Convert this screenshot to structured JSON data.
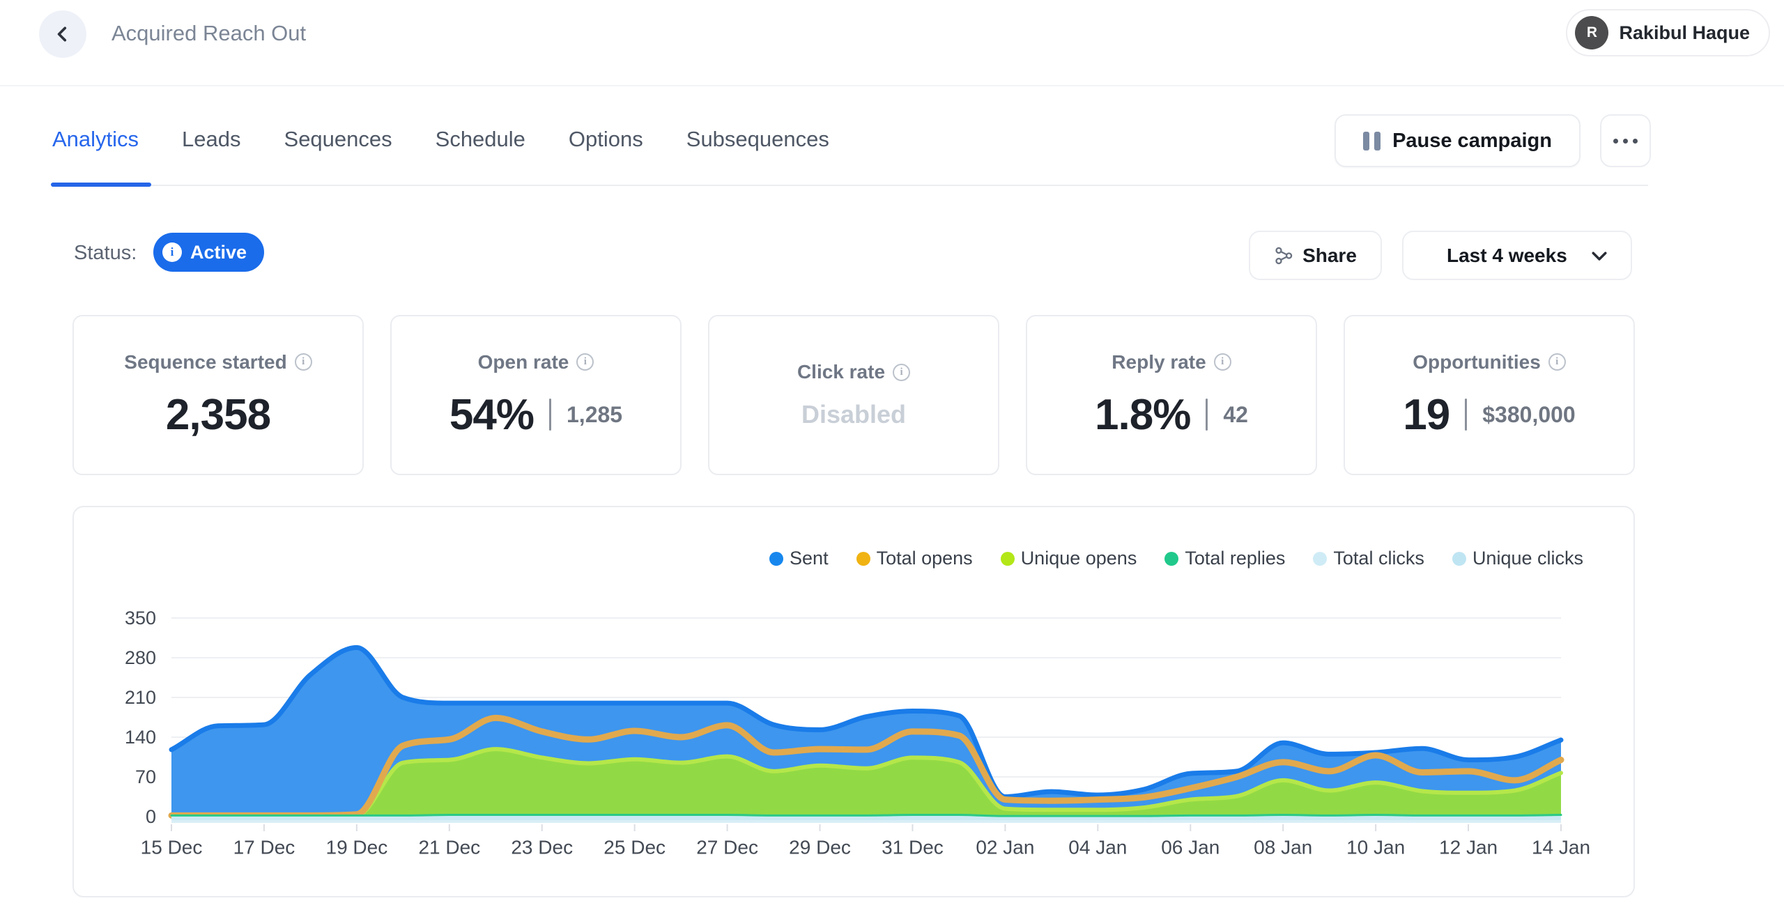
{
  "header": {
    "title": "Acquired Reach Out",
    "user": {
      "initial": "R",
      "name": "Rakibul Haque"
    }
  },
  "tabs": {
    "items": [
      {
        "label": "Analytics",
        "active": true
      },
      {
        "label": "Leads",
        "active": false
      },
      {
        "label": "Sequences",
        "active": false
      },
      {
        "label": "Schedule",
        "active": false
      },
      {
        "label": "Options",
        "active": false
      },
      {
        "label": "Subsequences",
        "active": false
      }
    ],
    "pause_label": "Pause campaign"
  },
  "status": {
    "label": "Status:",
    "badge": "Active"
  },
  "toolbar": {
    "share_label": "Share",
    "range_label": "Last 4 weeks"
  },
  "stats": [
    {
      "label": "Sequence started",
      "value": "2,358"
    },
    {
      "label": "Open rate",
      "value": "54%",
      "secondary": "1,285"
    },
    {
      "label": "Click rate",
      "value": "Disabled"
    },
    {
      "label": "Reply rate",
      "value": "1.8%",
      "secondary": "42"
    },
    {
      "label": "Opportunities",
      "value": "19",
      "secondary": "$380,000"
    }
  ],
  "colors": {
    "accent_blue": "#1a6ceb",
    "sent_fill": "#3e96ee",
    "sent_stroke": "#1a7ce9",
    "opens_stroke": "#e1a94e",
    "unique_fill": "#92da45",
    "unique_stroke": "#b5e74a",
    "replies_stroke": "#2bc987",
    "clicks_band": "#d9eef7",
    "unique_clicks_band": "#cbe9f5"
  },
  "chart_data": {
    "type": "area",
    "title": "",
    "xlabel": "",
    "ylabel": "",
    "grid": true,
    "legend_position": "top-right",
    "ylim": [
      0,
      350
    ],
    "yticks": [
      0,
      70,
      140,
      210,
      280,
      350
    ],
    "x": [
      "15 Dec",
      "16 Dec",
      "17 Dec",
      "18 Dec",
      "19 Dec",
      "20 Dec",
      "21 Dec",
      "22 Dec",
      "23 Dec",
      "24 Dec",
      "25 Dec",
      "26 Dec",
      "27 Dec",
      "28 Dec",
      "29 Dec",
      "30 Dec",
      "31 Dec",
      "01 Jan",
      "02 Jan",
      "03 Jan",
      "04 Jan",
      "05 Jan",
      "06 Jan",
      "07 Jan",
      "08 Jan",
      "09 Jan",
      "10 Jan",
      "11 Jan",
      "12 Jan",
      "13 Jan",
      "14 Jan"
    ],
    "tick_every": 2,
    "series": [
      {
        "name": "Sent",
        "render": "area",
        "legend_color": "#1787ee",
        "fill": "#3e96ee",
        "stroke": "#1a7ce9",
        "stroke_width": 7,
        "values": [
          118,
          160,
          162,
          250,
          298,
          210,
          200,
          200,
          200,
          200,
          200,
          200,
          200,
          162,
          153,
          176,
          186,
          178,
          35,
          44,
          38,
          48,
          76,
          80,
          130,
          110,
          113,
          120,
          100,
          105,
          135
        ]
      },
      {
        "name": "Total opens",
        "render": "line",
        "legend_color": "#f0b312",
        "stroke": "#e1a94e",
        "stroke_width": 9,
        "values": [
          2,
          2,
          2,
          2,
          4,
          125,
          136,
          174,
          150,
          136,
          151,
          140,
          161,
          113,
          119,
          118,
          150,
          143,
          30,
          28,
          30,
          34,
          50,
          70,
          96,
          80,
          108,
          78,
          80,
          64,
          100
        ]
      },
      {
        "name": "Unique opens",
        "render": "area",
        "legend_color": "#b3e718",
        "fill": "#92da45",
        "stroke": "#b5e74a",
        "stroke_width": 6,
        "values": [
          1,
          1,
          1,
          1,
          2,
          95,
          100,
          119,
          104,
          94,
          101,
          95,
          106,
          80,
          90,
          85,
          104,
          96,
          14,
          12,
          12,
          16,
          30,
          36,
          64,
          46,
          60,
          45,
          42,
          46,
          77
        ]
      },
      {
        "name": "Total replies",
        "render": "line",
        "legend_color": "#20c98b",
        "stroke": "#2bc987",
        "stroke_width": 3,
        "values": [
          2,
          2,
          2,
          2,
          2,
          2,
          3,
          3,
          3,
          3,
          3,
          3,
          3,
          2,
          2,
          2,
          3,
          3,
          1,
          1,
          1,
          1,
          2,
          2,
          3,
          2,
          3,
          2,
          2,
          2,
          3
        ]
      },
      {
        "name": "Total clicks",
        "render": "band",
        "legend_color": "#cfecf6",
        "fill": "#d9eef7",
        "values": [
          4,
          4,
          4,
          4,
          4,
          4,
          4,
          4,
          4,
          4,
          4,
          4,
          4,
          4,
          4,
          4,
          4,
          4,
          4,
          4,
          4,
          4,
          4,
          4,
          4,
          4,
          4,
          4,
          4,
          4,
          4
        ]
      },
      {
        "name": "Unique clicks",
        "render": "band",
        "legend_color": "#bfe5f3",
        "fill": "#cbe9f5",
        "values": [
          3,
          3,
          3,
          3,
          3,
          3,
          3,
          3,
          3,
          3,
          3,
          3,
          3,
          3,
          3,
          3,
          3,
          3,
          3,
          3,
          3,
          3,
          3,
          3,
          3,
          3,
          3,
          3,
          3,
          3,
          3
        ]
      }
    ]
  }
}
